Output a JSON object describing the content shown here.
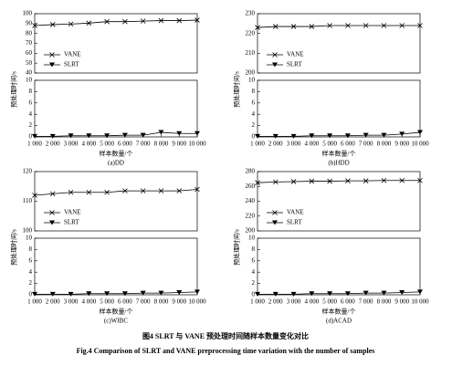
{
  "chart_data": [
    {
      "type": "line",
      "ylabel": "预处理时间/s",
      "xlabel": "样本数量/个",
      "caption": "(a)DD",
      "x": [
        1000,
        2000,
        3000,
        4000,
        5000,
        6000,
        7000,
        8000,
        9000,
        10000
      ],
      "xlim": [
        1000,
        10000
      ],
      "xticks": [
        {
          "value": 1000,
          "label": "1 000"
        },
        {
          "value": 2000,
          "label": "2 000"
        },
        {
          "value": 3000,
          "label": "3 000"
        },
        {
          "value": 4000,
          "label": "4 000"
        },
        {
          "value": 5000,
          "label": "5 000"
        },
        {
          "value": 6000,
          "label": "6 000"
        },
        {
          "value": 7000,
          "label": "7 000"
        },
        {
          "value": 8000,
          "label": "8 000"
        },
        {
          "value": 9000,
          "label": "9 000"
        },
        {
          "value": 10000,
          "label": "10 000"
        }
      ],
      "ylim_top": [
        40,
        100
      ],
      "yticks_top": [
        40,
        50,
        60,
        70,
        80,
        90,
        100
      ],
      "ylim": [
        0,
        10
      ],
      "yticks": [
        0,
        2,
        4,
        6,
        8,
        10
      ],
      "series": [
        {
          "name": "VANE",
          "color": "#000000",
          "marker": "x",
          "axis": "top",
          "values": [
            88,
            89,
            89.5,
            90.5,
            92,
            92,
            92.5,
            93,
            93,
            93.5
          ]
        },
        {
          "name": "SLRT",
          "color": "#000000",
          "marker": "triangle-down",
          "values": [
            0.1,
            0.1,
            0.2,
            0.2,
            0.2,
            0.3,
            0.3,
            0.8,
            0.6,
            0.6
          ]
        }
      ]
    },
    {
      "type": "line",
      "ylabel": "预处理时间/s",
      "xlabel": "样本数量/个",
      "caption": "(b)HDD",
      "x": [
        1000,
        2000,
        3000,
        4000,
        5000,
        6000,
        7000,
        8000,
        9000,
        10000
      ],
      "xlim": [
        1000,
        10000
      ],
      "xticks": [
        {
          "value": 1000,
          "label": "1 000"
        },
        {
          "value": 2000,
          "label": "2 000"
        },
        {
          "value": 3000,
          "label": "3 000"
        },
        {
          "value": 4000,
          "label": "4 000"
        },
        {
          "value": 5000,
          "label": "5 000"
        },
        {
          "value": 6000,
          "label": "6 000"
        },
        {
          "value": 7000,
          "label": "7 000"
        },
        {
          "value": 8000,
          "label": "8 000"
        },
        {
          "value": 9000,
          "label": "9 000"
        },
        {
          "value": 10000,
          "label": "10 000"
        }
      ],
      "ylim_top": [
        200,
        230
      ],
      "yticks_top": [
        200,
        210,
        220,
        230
      ],
      "ylim": [
        0,
        10
      ],
      "yticks": [
        0,
        2,
        4,
        6,
        8,
        10
      ],
      "series": [
        {
          "name": "VANE",
          "color": "#000000",
          "marker": "x",
          "axis": "top",
          "values": [
            223,
            223.5,
            223.5,
            223.5,
            224,
            224,
            224,
            224,
            224,
            224
          ]
        },
        {
          "name": "SLRT",
          "color": "#000000",
          "marker": "triangle-down",
          "values": [
            0.1,
            0.1,
            0.1,
            0.2,
            0.2,
            0.2,
            0.3,
            0.3,
            0.5,
            0.8
          ]
        }
      ]
    },
    {
      "type": "line",
      "ylabel": "预处理时间/s",
      "xlabel": "样本数量/个",
      "caption": "(c)WIBC",
      "x": [
        1000,
        2000,
        3000,
        4000,
        5000,
        6000,
        7000,
        8000,
        9000,
        10000
      ],
      "xlim": [
        1000,
        10000
      ],
      "xticks": [
        {
          "value": 1000,
          "label": "1 000"
        },
        {
          "value": 2000,
          "label": "2 000"
        },
        {
          "value": 3000,
          "label": "3 000"
        },
        {
          "value": 4000,
          "label": "4 000"
        },
        {
          "value": 5000,
          "label": "5 000"
        },
        {
          "value": 6000,
          "label": "6 000"
        },
        {
          "value": 7000,
          "label": "7 000"
        },
        {
          "value": 8000,
          "label": "8 000"
        },
        {
          "value": 9000,
          "label": "9 000"
        },
        {
          "value": 10000,
          "label": "10 000"
        }
      ],
      "ylim_top": [
        100,
        120
      ],
      "yticks_top": [
        100,
        110,
        120
      ],
      "ylim": [
        0,
        10
      ],
      "yticks": [
        0,
        2,
        4,
        6,
        8,
        10
      ],
      "series": [
        {
          "name": "VANE",
          "color": "#000000",
          "marker": "x",
          "axis": "top",
          "values": [
            112,
            112.5,
            113,
            113,
            113,
            113.5,
            113.5,
            113.5,
            113.5,
            114
          ]
        },
        {
          "name": "SLRT",
          "color": "#000000",
          "marker": "triangle-down",
          "values": [
            0.1,
            0.1,
            0.1,
            0.2,
            0.2,
            0.2,
            0.3,
            0.3,
            0.4,
            0.5
          ]
        }
      ]
    },
    {
      "type": "line",
      "ylabel": "预处理时间/s",
      "xlabel": "样本数量/个",
      "caption": "(d)ACAD",
      "x": [
        1000,
        2000,
        3000,
        4000,
        5000,
        6000,
        7000,
        8000,
        9000,
        10000
      ],
      "xlim": [
        1000,
        10000
      ],
      "xticks": [
        {
          "value": 1000,
          "label": "1 000"
        },
        {
          "value": 2000,
          "label": "2 000"
        },
        {
          "value": 3000,
          "label": "3 000"
        },
        {
          "value": 4000,
          "label": "4 000"
        },
        {
          "value": 5000,
          "label": "5 000"
        },
        {
          "value": 6000,
          "label": "6 000"
        },
        {
          "value": 7000,
          "label": "7 000"
        },
        {
          "value": 8000,
          "label": "8 000"
        },
        {
          "value": 9000,
          "label": "9 000"
        },
        {
          "value": 10000,
          "label": "10 000"
        }
      ],
      "ylim_top": [
        200,
        280
      ],
      "yticks_top": [
        200,
        220,
        240,
        260,
        280
      ],
      "ylim": [
        0,
        10
      ],
      "yticks": [
        0,
        2,
        4,
        6,
        8,
        10
      ],
      "series": [
        {
          "name": "VANE",
          "color": "#000000",
          "marker": "x",
          "axis": "top",
          "values": [
            265,
            266,
            266.5,
            267,
            267,
            267.5,
            267.5,
            268,
            268,
            268
          ]
        },
        {
          "name": "SLRT",
          "color": "#000000",
          "marker": "triangle-down",
          "values": [
            0.1,
            0.1,
            0.1,
            0.2,
            0.2,
            0.2,
            0.3,
            0.3,
            0.4,
            0.5
          ]
        }
      ]
    }
  ],
  "figure_caption": {
    "zh": "图4    SLRT 与 VANE 预处理时间随样本数量变化对比",
    "en": "Fig.4    Comparison of SLRT and VANE preprocessing time variation with the number of samples"
  }
}
